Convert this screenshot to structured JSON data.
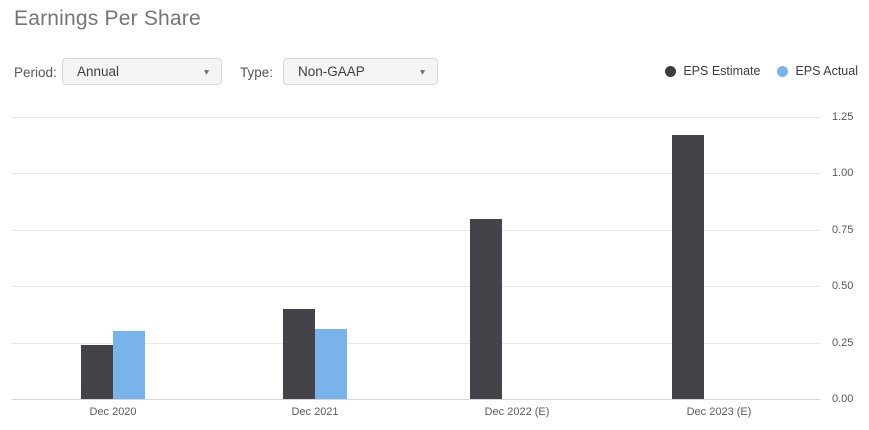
{
  "header": {
    "title": "Earnings Per Share"
  },
  "controls": {
    "period": {
      "label": "Period:",
      "value": "Annual"
    },
    "type": {
      "label": "Type:",
      "value": "Non-GAAP"
    }
  },
  "icons": {
    "dropdown_arrow": "▼"
  },
  "legend": {
    "items": [
      {
        "label": "EPS Estimate",
        "color": "#3a3a40"
      },
      {
        "label": "EPS Actual",
        "color": "#7ab3e9"
      }
    ]
  },
  "colors": {
    "estimate_bar": "#434349",
    "actual_bar": "#7ab3e9",
    "gridline": "#e7e7e7",
    "axis_line": "#d6d6d6"
  },
  "chart_data": {
    "type": "bar",
    "title": "Earnings Per Share",
    "categories": [
      "Dec 2020",
      "Dec 2021",
      "Dec 2022 (E)",
      "Dec 2023 (E)"
    ],
    "series": [
      {
        "name": "EPS Estimate",
        "color": "#434349",
        "values": [
          0.24,
          0.4,
          0.8,
          1.17
        ]
      },
      {
        "name": "EPS Actual",
        "color": "#7ab3e9",
        "values": [
          0.3,
          0.31,
          null,
          null
        ]
      }
    ],
    "xlabel": "",
    "ylabel": "",
    "ylim": [
      0,
      1.25
    ],
    "yticks": [
      0.0,
      0.25,
      0.5,
      0.75,
      1.0,
      1.25
    ],
    "ytick_labels": [
      "0.00",
      "0.25",
      "0.50",
      "0.75",
      "1.00",
      "1.25"
    ],
    "grid": true,
    "yaxis_side": "right",
    "legend_position": "top-right"
  }
}
